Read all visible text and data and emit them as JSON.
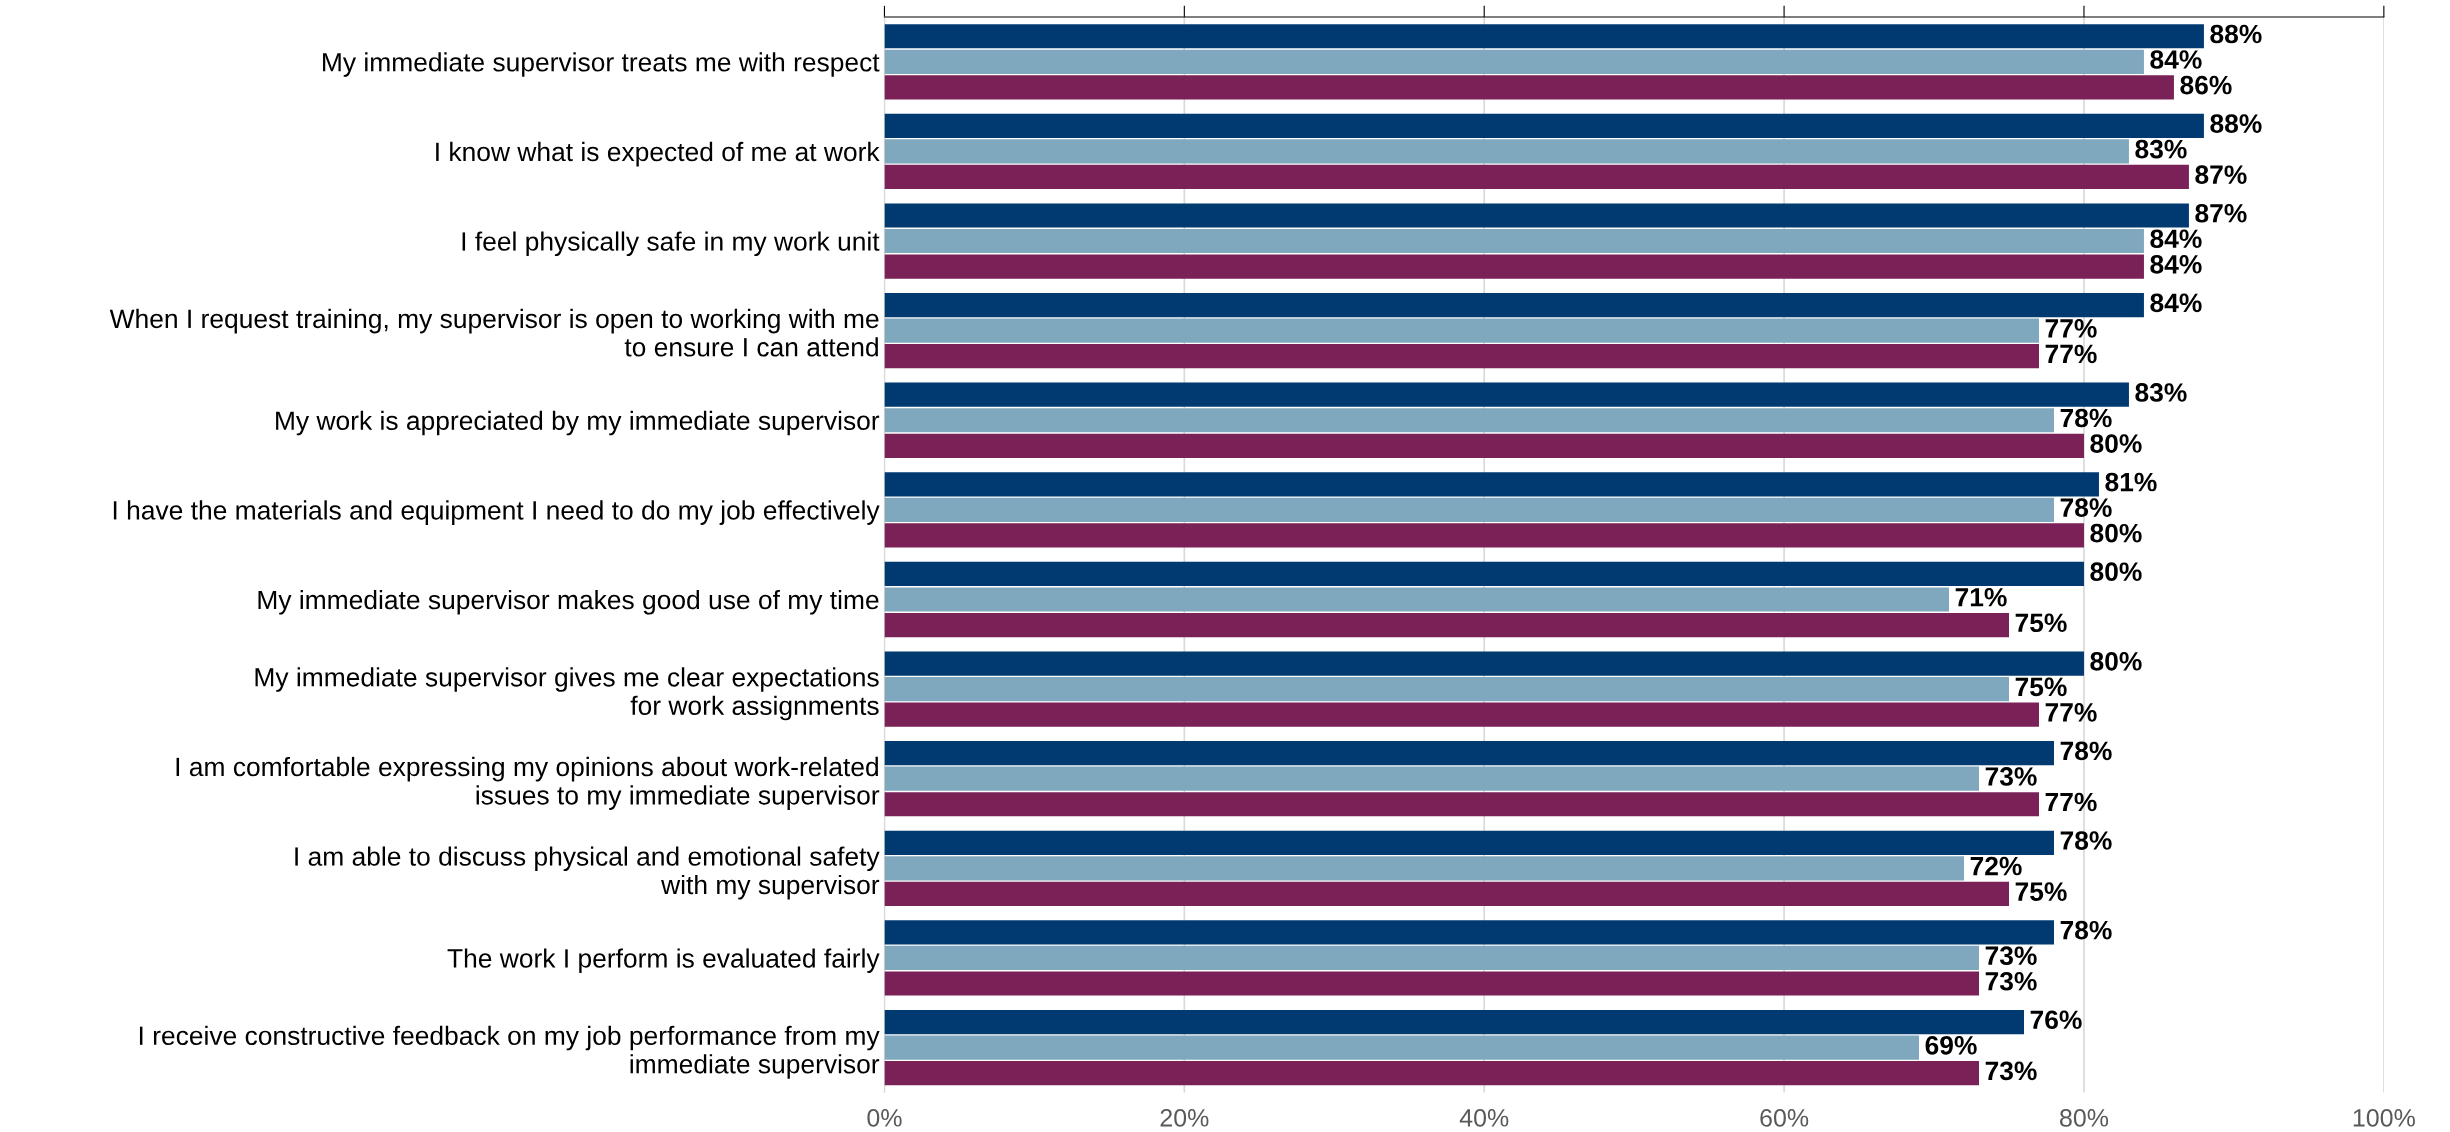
{
  "chart_data": {
    "type": "bar",
    "orientation": "horizontal",
    "categories": [
      "My immediate supervisor treats me with respect",
      "I know what is expected of me at work",
      "I feel physically safe in my work unit",
      "When I request training, my supervisor is open to working with me\nto ensure I can attend",
      "My work is appreciated by my immediate supervisor",
      "I have the materials and equipment I need to do my job effectively",
      "My immediate supervisor makes good use of my time",
      "My immediate supervisor gives me clear expectations\nfor work assignments",
      "I am comfortable expressing my opinions about work-related\nissues to my immediate supervisor",
      "I am able to discuss physical and emotional safety\nwith my supervisor",
      "The work I perform is evaluated fairly",
      "I receive constructive feedback on my job performance from my\nimmediate supervisor"
    ],
    "series": [
      {
        "color": "#003a70",
        "values": [
          88,
          88,
          87,
          84,
          83,
          81,
          80,
          80,
          78,
          78,
          78,
          76
        ]
      },
      {
        "color": "#7fa8be",
        "values": [
          84,
          83,
          84,
          77,
          78,
          78,
          71,
          75,
          73,
          72,
          73,
          69
        ]
      },
      {
        "color": "#7a2157",
        "values": [
          86,
          87,
          84,
          77,
          80,
          80,
          75,
          77,
          77,
          75,
          73,
          73
        ]
      }
    ],
    "xlim": [
      0,
      100
    ],
    "xticks": [
      {
        "value": 0,
        "label": "0%"
      },
      {
        "value": 20,
        "label": "20%"
      },
      {
        "value": 40,
        "label": "40%"
      },
      {
        "value": 60,
        "label": "60%"
      },
      {
        "value": 80,
        "label": "80%"
      },
      {
        "value": 100,
        "label": "100%"
      }
    ],
    "value_labels": [
      [
        "88%",
        "88%",
        "87%",
        "84%",
        "83%",
        "81%",
        "80%",
        "80%",
        "78%",
        "78%",
        "78%",
        "76%"
      ],
      [
        "84%",
        "83%",
        "84%",
        "77%",
        "78%",
        "78%",
        "71%",
        "75%",
        "73%",
        "72%",
        "73%",
        "69%"
      ],
      [
        "86%",
        "87%",
        "84%",
        "77%",
        "80%",
        "80%",
        "75%",
        "77%",
        "77%",
        "75%",
        "73%",
        "73%"
      ]
    ],
    "grid": "x",
    "legend": false
  }
}
